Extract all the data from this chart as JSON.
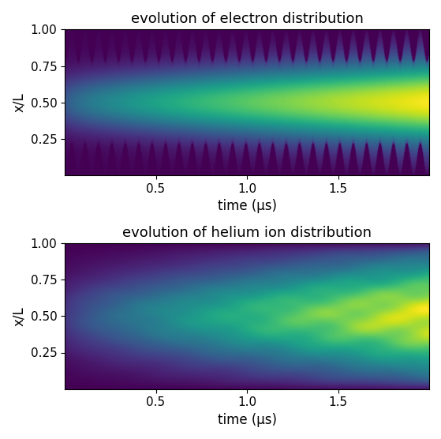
{
  "title_electron": "evolution of electron distribution",
  "title_ion": "evolution of helium ion distribution",
  "xlabel": "time (μs)",
  "ylabel": "x/L",
  "t_min": 0.0,
  "t_max": 2.0,
  "x_min": 0.0,
  "x_max": 1.0,
  "xticks": [
    0.5,
    1.0,
    1.5
  ],
  "yticks": [
    0.25,
    0.5,
    0.75,
    1.0
  ],
  "n_time": 600,
  "n_space": 300,
  "rf_period_us": 0.0737,
  "colormap": "viridis",
  "title_fontsize": 13,
  "label_fontsize": 12,
  "tick_fontsize": 11,
  "figsize": [
    5.59,
    5.56
  ],
  "dpi": 100
}
